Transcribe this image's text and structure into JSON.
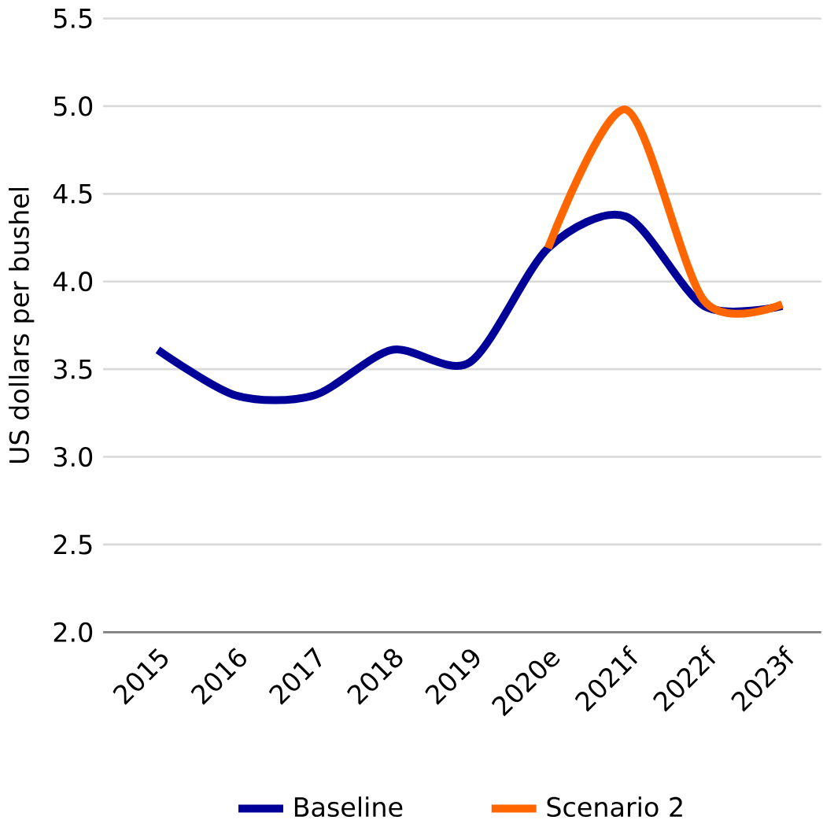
{
  "chart_data": {
    "type": "line",
    "ylabel": "US dollars per bushel",
    "categories": [
      "2015",
      "2016",
      "2017",
      "2018",
      "2019",
      "2020e",
      "2021f",
      "2022f",
      "2023f"
    ],
    "series": [
      {
        "name": "Baseline",
        "color": "#000099",
        "values": [
          3.61,
          3.35,
          3.35,
          3.61,
          3.54,
          4.19,
          4.37,
          3.86,
          3.86
        ]
      },
      {
        "name": "Scenario 2",
        "color": "#ff6600",
        "values": [
          null,
          null,
          null,
          null,
          null,
          4.19,
          4.98,
          3.89,
          3.87
        ]
      }
    ],
    "ylim": [
      2.0,
      5.5
    ],
    "yticks": [
      {
        "value": 2.0,
        "label": "2.0"
      },
      {
        "value": 2.5,
        "label": "2.5"
      },
      {
        "value": 3.0,
        "label": "3.0"
      },
      {
        "value": 3.5,
        "label": "3.5"
      },
      {
        "value": 4.0,
        "label": "4.0"
      },
      {
        "value": 4.5,
        "label": "4.5"
      },
      {
        "value": 5.0,
        "label": "5.0"
      },
      {
        "value": 5.5,
        "label": "5.5"
      }
    ],
    "grid": "y",
    "legend": "bottom",
    "marker": "none",
    "line_style": "solid"
  }
}
